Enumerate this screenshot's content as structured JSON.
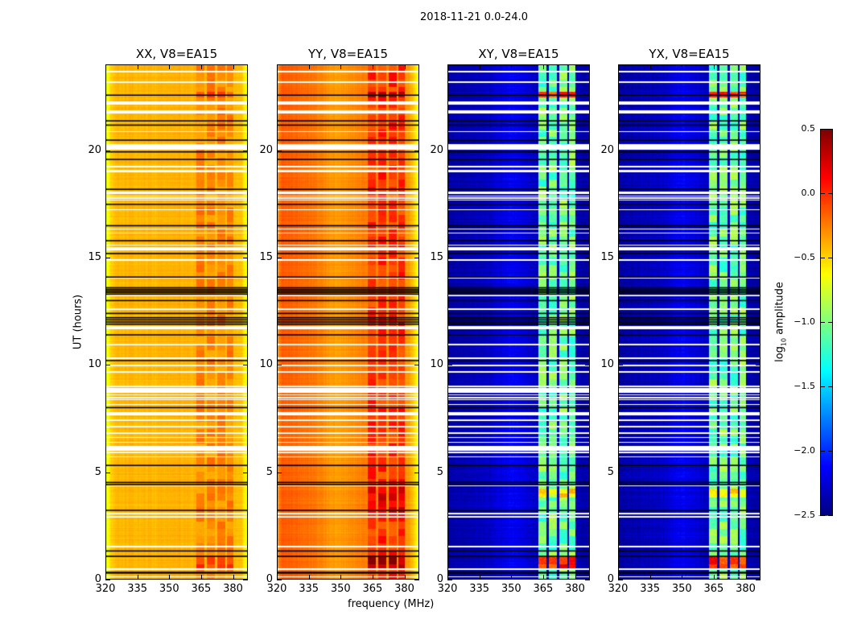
{
  "chart_data": {
    "type": "heatmap",
    "title": "2018-11-21 0.0-24.0",
    "xlabel": "frequency (MHz)",
    "ylabel": "UT (hours)",
    "xlim": [
      320,
      387
    ],
    "ylim": [
      0,
      24
    ],
    "xticks": [
      "320",
      "335",
      "350",
      "365",
      "380"
    ],
    "xtick_values": [
      320,
      335,
      350,
      365,
      380
    ],
    "yticks": [
      "0",
      "5",
      "10",
      "15",
      "20"
    ],
    "ytick_values": [
      0,
      5,
      10,
      15,
      20
    ],
    "colormap": "jet",
    "colorbar": {
      "label_main": "log",
      "label_sub": "10",
      "label_rest": " amplitude",
      "range": [
        -2.5,
        0.5
      ],
      "ticks": [
        "0.5",
        "0.0",
        "−0.5",
        "−1.0",
        "−1.5",
        "−2.0",
        "−2.5"
      ],
      "tick_values": [
        0.5,
        0.0,
        -0.5,
        -1.0,
        -1.5,
        -2.0,
        -2.5
      ]
    },
    "flagged_white_bands_hours": [
      [
        23.66,
        23.74
      ],
      [
        23.16,
        23.24
      ],
      [
        22.15,
        22.3
      ],
      [
        21.83,
        21.9
      ],
      [
        21.76,
        21.82
      ],
      [
        20.87,
        20.93
      ],
      [
        20.04,
        20.33
      ],
      [
        19.24,
        19.3
      ],
      [
        18.99,
        19.12
      ],
      [
        17.97,
        18.1
      ],
      [
        17.87,
        17.92
      ],
      [
        17.77,
        17.82
      ],
      [
        17.67,
        17.72
      ],
      [
        17.22,
        17.28
      ],
      [
        16.32,
        16.38
      ],
      [
        16.12,
        16.18
      ],
      [
        15.57,
        15.63
      ],
      [
        15.35,
        15.48
      ],
      [
        14.87,
        14.93
      ],
      [
        14.03,
        14.09
      ],
      [
        13.21,
        13.27
      ],
      [
        12.57,
        12.63
      ],
      [
        11.65,
        11.8
      ],
      [
        10.92,
        10.98
      ],
      [
        10.27,
        10.33
      ],
      [
        9.94,
        10.0
      ],
      [
        9.64,
        9.7
      ],
      [
        8.97,
        9.03
      ],
      [
        8.7,
        8.9
      ],
      [
        8.57,
        8.63
      ],
      [
        8.44,
        8.5
      ],
      [
        8.34,
        8.4
      ],
      [
        8.12,
        8.18
      ],
      [
        7.65,
        7.8
      ],
      [
        7.37,
        7.43
      ],
      [
        7.07,
        7.13
      ],
      [
        6.77,
        6.83
      ],
      [
        6.57,
        6.63
      ],
      [
        6.34,
        6.4
      ],
      [
        6.0,
        6.2
      ],
      [
        5.87,
        5.93
      ],
      [
        5.67,
        5.73
      ],
      [
        4.32,
        4.38
      ],
      [
        3.01,
        3.07
      ],
      [
        2.87,
        2.93
      ],
      [
        1.47,
        1.53
      ],
      [
        0.42,
        0.48
      ],
      [
        0.07,
        0.13
      ]
    ],
    "flagged_black_lines_hours": [
      22.6,
      21.4,
      21.2,
      20.5,
      19.95,
      19.6,
      18.2,
      17.5,
      16.5,
      15.8,
      15.2,
      14.1,
      13.6,
      13.52,
      13.45,
      13.38,
      13.3,
      13.0,
      12.4,
      12.2,
      12.1,
      12.0,
      11.9,
      11.4,
      10.2,
      8.0,
      5.3,
      4.5,
      4.4,
      3.2,
      1.3,
      1.05,
      0.3,
      0.27
    ],
    "band_channels_mhz": [
      [
        363,
        366.8
      ],
      [
        368,
        371.8
      ],
      [
        372.8,
        376.5
      ],
      [
        377.5,
        380.5
      ]
    ],
    "panels": [
      {
        "title": "XX, V8=EA15",
        "seed": 11,
        "profile": [
          [
            320,
            -0.75
          ],
          [
            322,
            -0.5
          ],
          [
            325,
            -0.42
          ],
          [
            362,
            -0.4
          ],
          [
            384,
            -0.42
          ],
          [
            387,
            -0.7
          ]
        ],
        "band_value": -0.28,
        "band_noise": 0.22,
        "row_noise": 0.06,
        "pix_noise": 0.04,
        "band_events": [
          [
            0.4,
            1.0,
            -0.05
          ],
          [
            22.5,
            22.75,
            -0.1
          ]
        ]
      },
      {
        "title": "YY, V8=EA15",
        "seed": 23,
        "profile": [
          [
            320,
            -0.35
          ],
          [
            322,
            -0.15
          ],
          [
            335,
            -0.2
          ],
          [
            348,
            -0.35
          ],
          [
            360,
            -0.25
          ],
          [
            382,
            -0.3
          ],
          [
            385,
            -0.5
          ],
          [
            387,
            -0.7
          ]
        ],
        "band_value": -0.02,
        "band_noise": 0.3,
        "row_noise": 0.06,
        "pix_noise": 0.04,
        "band_events": [
          [
            0.4,
            1.0,
            0.35
          ],
          [
            3.0,
            4.3,
            0.2
          ],
          [
            22.5,
            22.75,
            0.3
          ]
        ]
      },
      {
        "title": "XY, V8=EA15",
        "seed": 37,
        "profile": [
          [
            320,
            -2.38
          ],
          [
            340,
            -2.3
          ],
          [
            350,
            -2.15
          ],
          [
            362,
            -2.3
          ],
          [
            387,
            -2.38
          ]
        ],
        "band_value": -1.05,
        "band_noise": 0.45,
        "row_noise": 0.12,
        "pix_noise": 0.12,
        "band_events": [
          [
            0.4,
            1.0,
            0.0
          ],
          [
            22.5,
            22.75,
            -0.05
          ],
          [
            3.8,
            4.2,
            -0.6
          ]
        ]
      },
      {
        "title": "YX, V8=EA15",
        "seed": 53,
        "profile": [
          [
            320,
            -2.38
          ],
          [
            340,
            -2.3
          ],
          [
            350,
            -2.15
          ],
          [
            362,
            -2.3
          ],
          [
            387,
            -2.38
          ]
        ],
        "band_value": -1.05,
        "band_noise": 0.45,
        "row_noise": 0.12,
        "pix_noise": 0.12,
        "band_events": [
          [
            0.4,
            1.0,
            0.0
          ],
          [
            22.5,
            22.75,
            -0.05
          ],
          [
            3.8,
            4.2,
            -0.6
          ]
        ]
      }
    ]
  }
}
